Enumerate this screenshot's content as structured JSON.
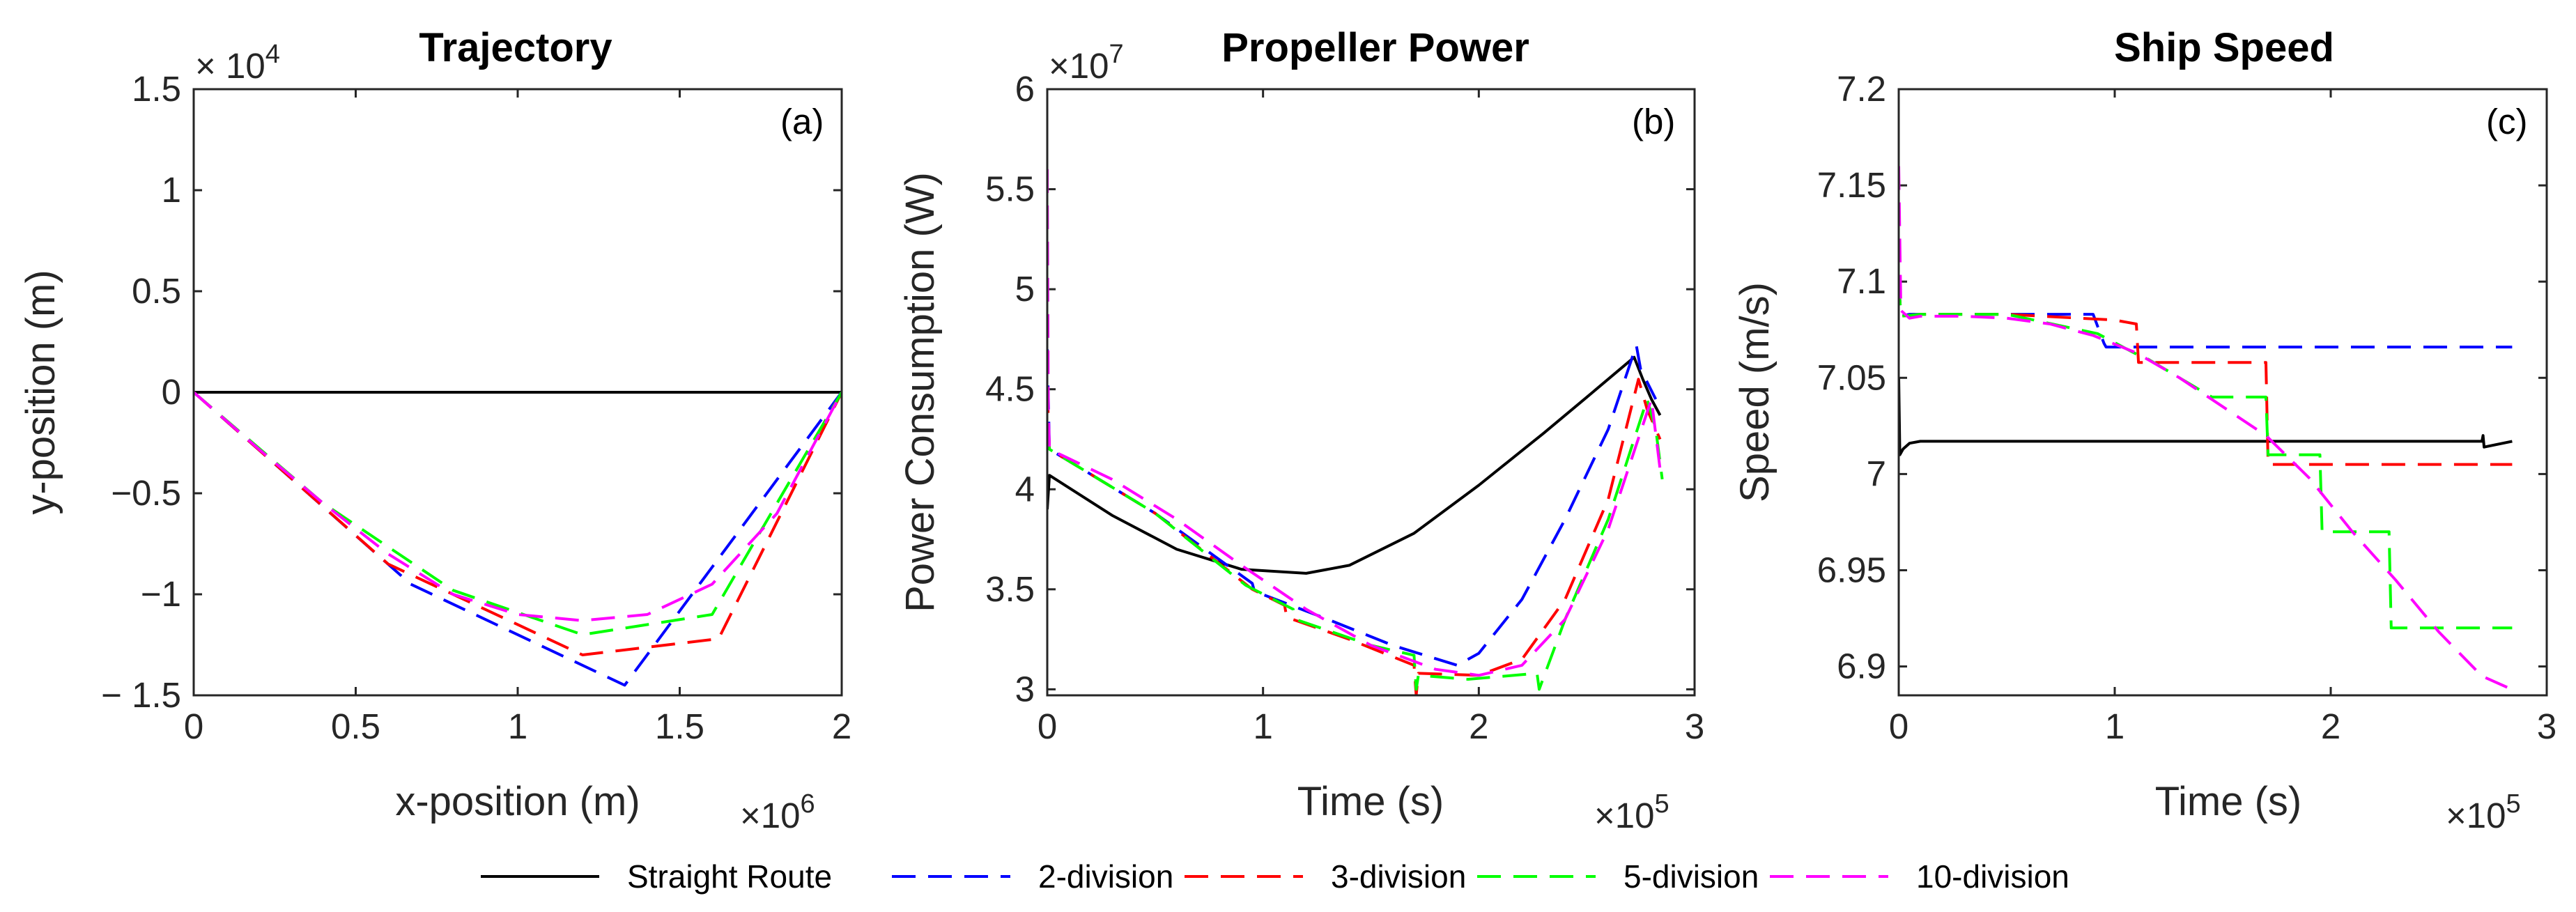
{
  "legend": [
    {
      "label": "Straight Route",
      "color": "#000000",
      "dash": "solid"
    },
    {
      "label": "2-division",
      "color": "#0000ff",
      "dash": "dashed"
    },
    {
      "label": "3-division",
      "color": "#ff0000",
      "dash": "dashed"
    },
    {
      "label": "5-division",
      "color": "#00ff00",
      "dash": "dashed"
    },
    {
      "label": "10-division",
      "color": "#ff00ff",
      "dash": "dashed"
    }
  ],
  "chart_data": [
    {
      "type": "line",
      "title": "Trajectory",
      "panel_label": "(a)",
      "xlabel": "x-position (m)",
      "ylabel": "y-position (m)",
      "x_exponent": "×10",
      "x_exponent_power": "6",
      "y_exponent": "× 10",
      "y_exponent_power": "4",
      "xlim": [
        0,
        2
      ],
      "ylim": [
        -1.5,
        1.5
      ],
      "xticks": [
        0,
        0.5,
        1,
        1.5,
        2
      ],
      "xtick_labels": [
        "0",
        "0.5",
        "1",
        "1.5",
        "2"
      ],
      "yticks": [
        -1.5,
        -1,
        -0.5,
        0,
        0.5,
        1,
        1.5
      ],
      "ytick_labels": [
        "− 1.5",
        "−1",
        "−0.5",
        "0",
        "0.5",
        "1",
        "1.5"
      ],
      "series": [
        {
          "name": "Straight Route",
          "x": [
            0,
            2
          ],
          "y": [
            0,
            0
          ]
        },
        {
          "name": "2-division",
          "x": [
            0,
            0.67,
            1.33,
            2
          ],
          "y": [
            0,
            -0.95,
            -1.45,
            0
          ]
        },
        {
          "name": "3-division",
          "x": [
            0,
            0.6,
            1.2,
            1.62,
            2
          ],
          "y": [
            0,
            -0.85,
            -1.3,
            -1.22,
            0
          ]
        },
        {
          "name": "5-division",
          "x": [
            0,
            0.4,
            0.8,
            1.2,
            1.6,
            2
          ],
          "y": [
            0,
            -0.55,
            -0.98,
            -1.2,
            -1.1,
            0
          ]
        },
        {
          "name": "10-division",
          "x": [
            0,
            0.2,
            0.4,
            0.6,
            0.8,
            1.0,
            1.2,
            1.4,
            1.6,
            1.8,
            2
          ],
          "y": [
            0,
            -0.28,
            -0.55,
            -0.8,
            -1.0,
            -1.1,
            -1.13,
            -1.1,
            -0.95,
            -0.6,
            0
          ]
        }
      ]
    },
    {
      "type": "line",
      "title": "Propeller Power",
      "panel_label": "(b)",
      "xlabel": "Time (s)",
      "ylabel": "Power Consumption (W)",
      "x_exponent": "×10",
      "x_exponent_power": "5",
      "y_exponent": "×10",
      "y_exponent_power": "7",
      "xlim": [
        0,
        3
      ],
      "ylim": [
        2.97,
        6.0
      ],
      "xticks": [
        0,
        1,
        2,
        3
      ],
      "xtick_labels": [
        "0",
        "1",
        "2",
        "3"
      ],
      "yticks": [
        3,
        3.5,
        4,
        4.5,
        5,
        5.5,
        6
      ],
      "ytick_labels": [
        "3",
        "3.5",
        "4",
        "4.5",
        "5",
        "5.5",
        "6"
      ],
      "series": [
        {
          "name": "Straight Route",
          "x": [
            0,
            0.01,
            0.3,
            0.6,
            0.9,
            1.2,
            1.4,
            1.7,
            2.0,
            2.3,
            2.5,
            2.72,
            2.76,
            2.8,
            2.84
          ],
          "y": [
            3.9,
            4.07,
            3.87,
            3.7,
            3.6,
            3.58,
            3.62,
            3.78,
            4.02,
            4.28,
            4.46,
            4.66,
            4.55,
            4.45,
            4.37
          ]
        },
        {
          "name": "2-division",
          "x": [
            0,
            0.01,
            0.5,
            0.95,
            0.96,
            1.3,
            1.6,
            1.9,
            2.0,
            2.2,
            2.4,
            2.6,
            2.73,
            2.75,
            2.82
          ],
          "y": [
            4.7,
            4.2,
            3.88,
            3.53,
            3.49,
            3.35,
            3.22,
            3.12,
            3.18,
            3.45,
            3.85,
            4.3,
            4.72,
            4.6,
            4.45
          ]
        },
        {
          "name": "3-division",
          "x": [
            0,
            0.01,
            0.5,
            0.95,
            1.1,
            1.11,
            1.4,
            1.7,
            1.71,
            1.72,
            2.0,
            2.2,
            2.4,
            2.6,
            2.74,
            2.78,
            2.84
          ],
          "y": [
            4.5,
            4.2,
            3.88,
            3.5,
            3.42,
            3.36,
            3.25,
            3.12,
            2.97,
            3.08,
            3.07,
            3.15,
            3.45,
            3.95,
            4.55,
            4.4,
            4.25
          ]
        },
        {
          "name": "5-division",
          "x": [
            0,
            0.01,
            0.5,
            0.92,
            1.14,
            1.15,
            1.5,
            1.7,
            1.71,
            1.72,
            1.95,
            2.27,
            2.28,
            2.4,
            2.6,
            2.78,
            2.82,
            2.85
          ],
          "y": [
            4.3,
            4.2,
            3.88,
            3.52,
            3.4,
            3.35,
            3.22,
            3.17,
            3.0,
            3.07,
            3.05,
            3.08,
            3.0,
            3.35,
            3.85,
            4.45,
            4.3,
            4.05
          ]
        },
        {
          "name": "10-division",
          "x": [
            0,
            0.005,
            0.01,
            0.3,
            0.6,
            0.9,
            1.2,
            1.5,
            1.8,
            2.0,
            2.2,
            2.4,
            2.6,
            2.8,
            2.84
          ],
          "y": [
            5.6,
            4.4,
            4.2,
            4.05,
            3.85,
            3.62,
            3.4,
            3.22,
            3.1,
            3.07,
            3.12,
            3.35,
            3.8,
            4.45,
            4.1
          ]
        }
      ]
    },
    {
      "type": "line",
      "title": "Ship Speed",
      "panel_label": "(c)",
      "xlabel": "Time (s)",
      "ylabel": "Speed (m/s)",
      "x_exponent": "×10",
      "x_exponent_power": "5",
      "xlim": [
        0,
        3
      ],
      "ylim": [
        6.885,
        7.2
      ],
      "xticks": [
        0,
        1,
        2,
        3
      ],
      "xtick_labels": [
        "0",
        "1",
        "2",
        "3"
      ],
      "yticks": [
        6.9,
        6.95,
        7,
        7.05,
        7.1,
        7.15,
        7.2
      ],
      "ytick_labels": [
        "6.9",
        "6.95",
        "7",
        "7.05",
        "7.1",
        "7.15",
        "7.2"
      ],
      "series": [
        {
          "name": "Straight Route",
          "x": [
            0,
            0.005,
            0.02,
            0.05,
            0.1,
            1.0,
            2.0,
            2.7,
            2.705,
            2.71,
            2.84
          ],
          "y": [
            7.05,
            7.01,
            7.013,
            7.016,
            7.017,
            7.017,
            7.017,
            7.017,
            7.02,
            7.014,
            7.017
          ]
        },
        {
          "name": "2-division",
          "x": [
            0,
            0.01,
            0.05,
            0.1,
            0.5,
            0.9,
            0.95,
            0.96,
            1.5,
            2.0,
            2.5,
            2.84
          ],
          "y": [
            7.1,
            7.082,
            7.083,
            7.083,
            7.083,
            7.083,
            7.068,
            7.066,
            7.066,
            7.066,
            7.066,
            7.066
          ]
        },
        {
          "name": "3-division",
          "x": [
            0,
            0.01,
            0.1,
            0.5,
            1.0,
            1.1,
            1.11,
            1.7,
            1.71,
            2.0,
            2.84
          ],
          "y": [
            7.1,
            7.082,
            7.083,
            7.083,
            7.08,
            7.078,
            7.058,
            7.058,
            7.005,
            7.005,
            7.005
          ]
        },
        {
          "name": "5-division",
          "x": [
            0,
            0.01,
            0.1,
            0.5,
            0.92,
            1.14,
            1.15,
            1.45,
            1.46,
            1.7,
            1.71,
            1.95,
            1.96,
            2.27,
            2.28,
            2.84
          ],
          "y": [
            7.1,
            7.082,
            7.083,
            7.083,
            7.073,
            7.06,
            7.06,
            7.04,
            7.04,
            7.04,
            7.01,
            7.01,
            6.97,
            6.97,
            6.92,
            6.92
          ]
        },
        {
          "name": "10-division",
          "x": [
            0,
            0.01,
            0.05,
            0.1,
            0.3,
            0.5,
            0.7,
            0.9,
            1.1,
            1.3,
            1.5,
            1.7,
            1.9,
            2.1,
            2.3,
            2.5,
            2.7,
            2.84
          ],
          "y": [
            7.16,
            7.085,
            7.081,
            7.082,
            7.082,
            7.081,
            7.078,
            7.072,
            7.063,
            7.05,
            7.035,
            7.02,
            6.998,
            6.97,
            6.945,
            6.918,
            6.895,
            6.888
          ]
        }
      ]
    }
  ]
}
